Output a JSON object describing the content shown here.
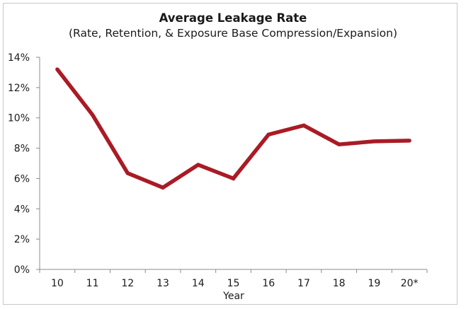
{
  "chart_data": {
    "type": "line",
    "title": "Average Leakage Rate",
    "subtitle": "(Rate, Retention, & Exposure Base Compression/Expansion)",
    "xlabel": "Year",
    "ylabel": "",
    "categories": [
      "10",
      "11",
      "12",
      "13",
      "14",
      "15",
      "16",
      "17",
      "18",
      "19",
      "20*"
    ],
    "series": [
      {
        "name": "Average Leakage Rate",
        "color": "#a91b25",
        "values": [
          0.132,
          0.102,
          0.0635,
          0.054,
          0.069,
          0.06,
          0.089,
          0.095,
          0.0825,
          0.0845,
          0.085
        ]
      }
    ],
    "ylim": [
      0,
      0.14
    ],
    "yticks": [
      0,
      0.02,
      0.04,
      0.06,
      0.08,
      0.1,
      0.12,
      0.14
    ],
    "ytick_labels": [
      "0%",
      "2%",
      "4%",
      "6%",
      "8%",
      "10%",
      "12%",
      "14%"
    ],
    "grid": false,
    "legend": "none",
    "axis_color": "#8c8c8c",
    "border_color": "#c8c8c8"
  }
}
